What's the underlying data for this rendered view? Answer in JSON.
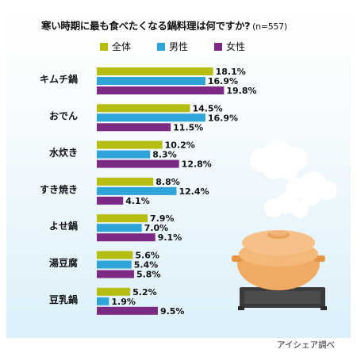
{
  "title": "寒い時期に最も食べたくなる鍋料理は何ですか?",
  "sample_note": "(n=557)",
  "source_note": "アイシェア調べ",
  "colors": {
    "all": "#b5bc12",
    "male": "#2fa4d8",
    "female": "#7d2a85"
  },
  "legend": [
    {
      "label": "全体",
      "color": "#b5bc12"
    },
    {
      "label": "男性",
      "color": "#2fa4d8"
    },
    {
      "label": "女性",
      "color": "#7d2a85"
    }
  ],
  "chart_data": {
    "type": "bar",
    "orientation": "horizontal",
    "unit": "%",
    "categories": [
      "キムチ鍋",
      "おでん",
      "水炊き",
      "すき焼き",
      "よせ鍋",
      "湯豆腐",
      "豆乳鍋"
    ],
    "series": [
      {
        "name": "全体",
        "values": [
          18.1,
          14.5,
          10.2,
          8.8,
          7.9,
          5.6,
          5.2
        ]
      },
      {
        "name": "男性",
        "values": [
          16.9,
          16.9,
          8.3,
          12.4,
          7.0,
          5.4,
          1.9
        ]
      },
      {
        "name": "女性",
        "values": [
          19.8,
          11.5,
          12.8,
          4.1,
          9.1,
          5.8,
          9.5
        ]
      }
    ],
    "xlim": [
      0,
      20
    ],
    "legend_position": "top",
    "grid": false
  }
}
